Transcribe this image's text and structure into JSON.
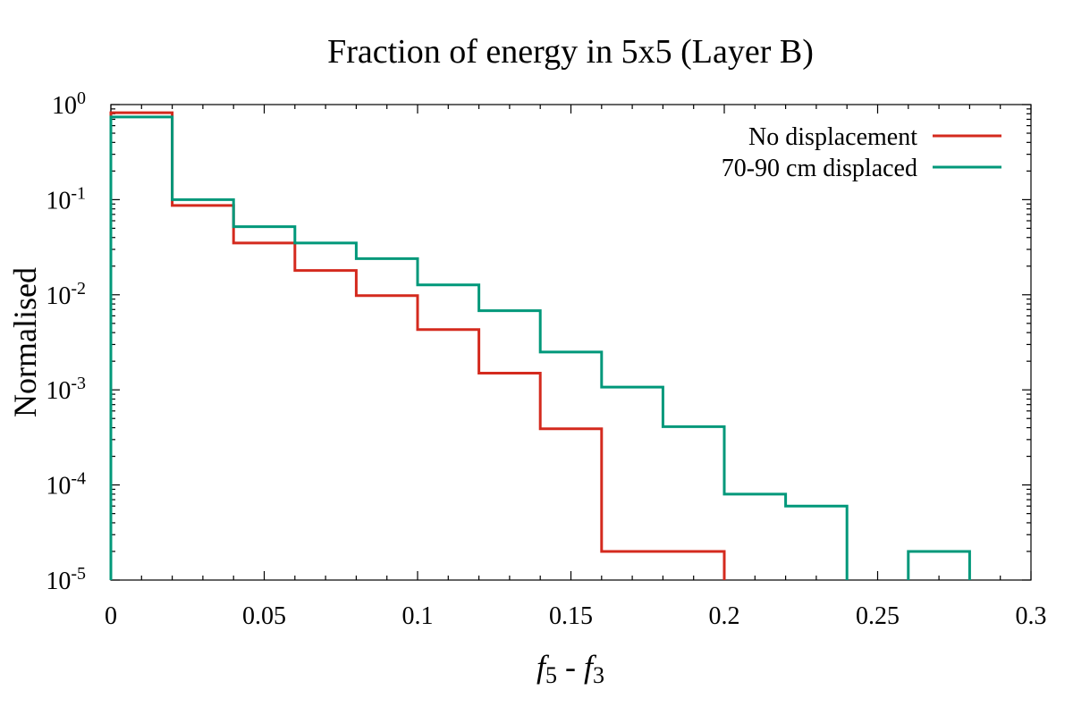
{
  "chart_data": {
    "type": "histogram-step",
    "title": "Fraction of energy in 5x5 (Layer B)",
    "xlabel": {
      "base1": "f",
      "sub1": "5",
      "op": " - ",
      "base2": "f",
      "sub2": "3"
    },
    "ylabel": "Normalised",
    "xlim": [
      0,
      0.3
    ],
    "ylim_log10": [
      -5,
      0
    ],
    "y_scale": "log",
    "x_ticks": [
      {
        "value": 0,
        "label": "0"
      },
      {
        "value": 0.05,
        "label": "0.05"
      },
      {
        "value": 0.1,
        "label": "0.1"
      },
      {
        "value": 0.15,
        "label": "0.15"
      },
      {
        "value": 0.2,
        "label": "0.2"
      },
      {
        "value": 0.25,
        "label": "0.25"
      },
      {
        "value": 0.3,
        "label": "0.3"
      }
    ],
    "y_ticks": [
      {
        "exp": 0,
        "base": "10",
        "sup": "0"
      },
      {
        "exp": -1,
        "base": "10",
        "sup": "-1"
      },
      {
        "exp": -2,
        "base": "10",
        "sup": "-2"
      },
      {
        "exp": -3,
        "base": "10",
        "sup": "-3"
      },
      {
        "exp": -4,
        "base": "10",
        "sup": "-4"
      },
      {
        "exp": -5,
        "base": "10",
        "sup": "-5"
      }
    ],
    "bin_edges": [
      0,
      0.02,
      0.04,
      0.06,
      0.08,
      0.1,
      0.12,
      0.14,
      0.16,
      0.18,
      0.2,
      0.22,
      0.24,
      0.26,
      0.28
    ],
    "legend_position": "top-right",
    "series": [
      {
        "name": "No displacement",
        "color": "#d42a1e",
        "values": [
          0.82,
          0.087,
          0.035,
          0.018,
          0.0098,
          0.0043,
          0.0015,
          0.00039,
          2e-05,
          2e-05,
          null,
          null,
          null,
          null
        ]
      },
      {
        "name": "70-90 cm displaced",
        "color": "#00987a",
        "values": [
          0.74,
          0.1,
          0.052,
          0.035,
          0.024,
          0.0127,
          0.0068,
          0.0025,
          0.00107,
          0.00041,
          8e-05,
          6e-05,
          null,
          2e-05
        ]
      }
    ]
  }
}
